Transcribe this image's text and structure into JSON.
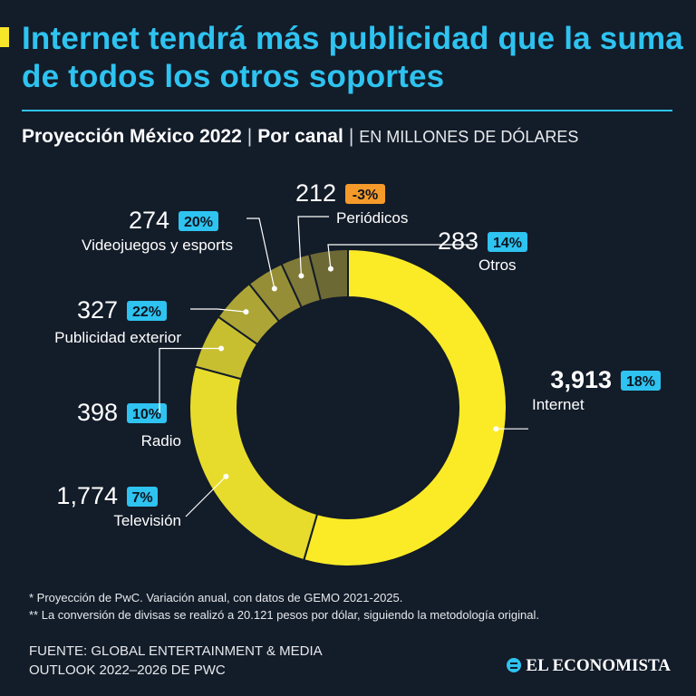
{
  "header": {
    "title": "Internet tendrá más publicidad que la suma de todos los otros soportes",
    "subtitle_main": "Proyección México 2022",
    "subtitle_channel": "Por canal",
    "subtitle_unit": "EN MILLONES DE DÓLARES"
  },
  "chart_data": {
    "type": "pie",
    "style": "donut",
    "title": "Internet tendrá más publicidad que la suma de todos los otros soportes",
    "subtitle": "Proyección México 2022 | Por canal | EN MILLONES DE DÓLARES",
    "slices": [
      {
        "label": "Internet",
        "value": 3913,
        "value_text": "3,913",
        "change": "18%",
        "color": "#fbeb27"
      },
      {
        "label": "Televisión",
        "value": 1774,
        "value_text": "1,774",
        "change": "7%",
        "color": "#e7dc2c"
      },
      {
        "label": "Radio",
        "value": 398,
        "value_text": "398",
        "change": "10%",
        "color": "#c8bf30"
      },
      {
        "label": "Publicidad exterior",
        "value": 327,
        "value_text": "327",
        "change": "22%",
        "color": "#ada636"
      },
      {
        "label": "Videojuegos y esports",
        "value": 274,
        "value_text": "274",
        "change": "20%",
        "color": "#958e36"
      },
      {
        "label": "Periódicos",
        "value": 212,
        "value_text": "212",
        "change": "-3%",
        "color": "#7f7a37"
      },
      {
        "label": "Otros",
        "value": 283,
        "value_text": "283",
        "change": "14%",
        "color": "#6d6935"
      }
    ],
    "badge_colors": {
      "positive": "#2ec3f0",
      "negative": "#f59a2a"
    },
    "legend": "none"
  },
  "footnotes": [
    "* Proyección de PwC. Variación anual, con datos de GEMO 2021-2025.",
    "** La conversión de divisas se realizó a 20.121 pesos por dólar, siguiendo la metodología original."
  ],
  "source": [
    "FUENTE: GLOBAL ENTERTAINMENT & MEDIA",
    "OUTLOOK 2022–2026 DE PWC"
  ],
  "logo": {
    "text": "EL ECONOMISTA",
    "icon": "el-economista-logo-icon"
  }
}
